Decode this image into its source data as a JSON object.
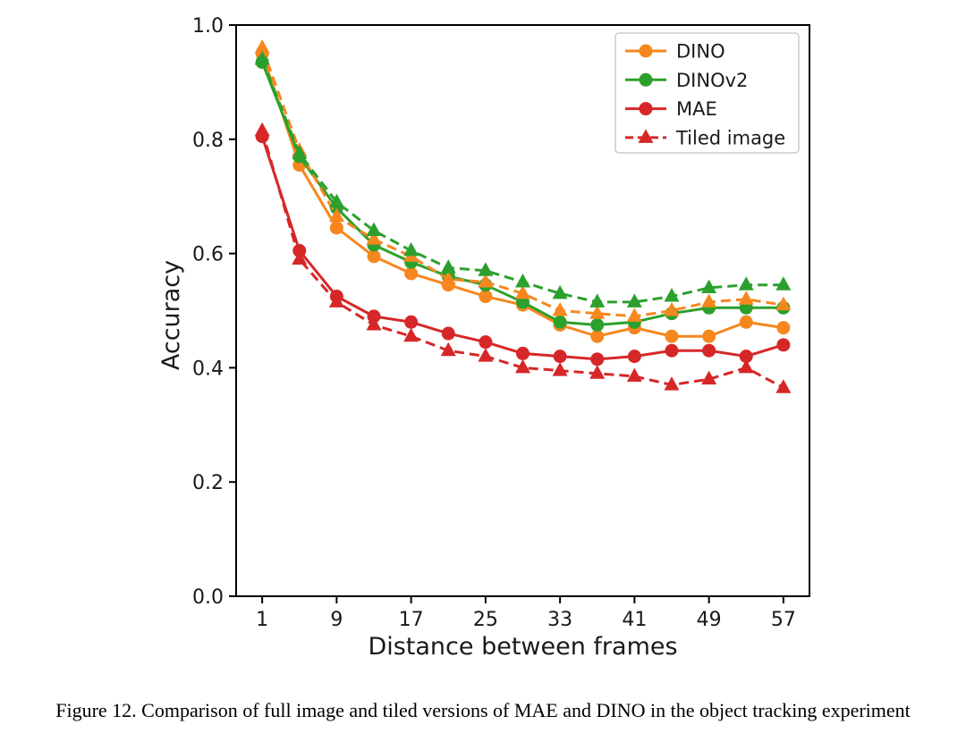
{
  "figure": {
    "caption": "Figure 12. Comparison of full image and tiled versions of MAE and DINO in the object tracking experiment"
  },
  "chart_data": {
    "type": "line",
    "title": "",
    "xlabel": "Distance between frames",
    "ylabel": "Accuracy",
    "xlim": [
      -1.8,
      59.8
    ],
    "ylim": [
      0.0,
      1.0
    ],
    "xticks": [
      1,
      9,
      17,
      25,
      33,
      41,
      49,
      57
    ],
    "yticks": [
      "0.0",
      "0.2",
      "0.4",
      "0.6",
      "0.8",
      "1.0"
    ],
    "grid": false,
    "legend_position": "upper right",
    "legend_entries": [
      "DINO",
      "DINOv2",
      "MAE",
      "Tiled image"
    ],
    "x": [
      1,
      5,
      9,
      13,
      17,
      21,
      25,
      29,
      33,
      37,
      41,
      45,
      49,
      53,
      57
    ],
    "series": [
      {
        "name": "DINO",
        "legend_label": "DINO",
        "color": "#f6871f",
        "line_style": "solid",
        "marker": "circle",
        "values": [
          0.95,
          0.755,
          0.645,
          0.595,
          0.565,
          0.545,
          0.525,
          0.51,
          0.475,
          0.455,
          0.47,
          0.455,
          0.455,
          0.48,
          0.47
        ]
      },
      {
        "name": "DINOv2",
        "legend_label": "DINOv2",
        "color": "#2ca02c",
        "line_style": "solid",
        "marker": "circle",
        "values": [
          0.935,
          0.77,
          0.68,
          0.615,
          0.585,
          0.56,
          0.545,
          0.515,
          0.48,
          0.475,
          0.48,
          0.495,
          0.505,
          0.505,
          0.505
        ]
      },
      {
        "name": "MAE",
        "legend_label": "MAE",
        "color": "#d62728",
        "line_style": "solid",
        "marker": "circle",
        "values": [
          0.805,
          0.605,
          0.525,
          0.49,
          0.48,
          0.46,
          0.445,
          0.425,
          0.42,
          0.415,
          0.42,
          0.43,
          0.43,
          0.42,
          0.44
        ]
      },
      {
        "name": "DINO tiled",
        "legend_label": null,
        "color": "#f6871f",
        "line_style": "dashed",
        "marker": "triangle",
        "values": [
          0.96,
          0.78,
          0.665,
          0.625,
          0.595,
          0.555,
          0.55,
          0.53,
          0.5,
          0.495,
          0.49,
          0.5,
          0.515,
          0.52,
          0.51
        ]
      },
      {
        "name": "DINOv2 tiled",
        "legend_label": null,
        "color": "#2ca02c",
        "line_style": "dashed",
        "marker": "triangle",
        "values": [
          0.94,
          0.775,
          0.69,
          0.64,
          0.605,
          0.575,
          0.57,
          0.55,
          0.53,
          0.515,
          0.515,
          0.525,
          0.54,
          0.545,
          0.545
        ]
      },
      {
        "name": "MAE tiled",
        "legend_label": "Tiled image",
        "color": "#d62728",
        "line_style": "dashed",
        "marker": "triangle",
        "values": [
          0.815,
          0.59,
          0.515,
          0.475,
          0.455,
          0.43,
          0.42,
          0.4,
          0.395,
          0.39,
          0.385,
          0.37,
          0.38,
          0.4,
          0.365
        ]
      }
    ]
  }
}
